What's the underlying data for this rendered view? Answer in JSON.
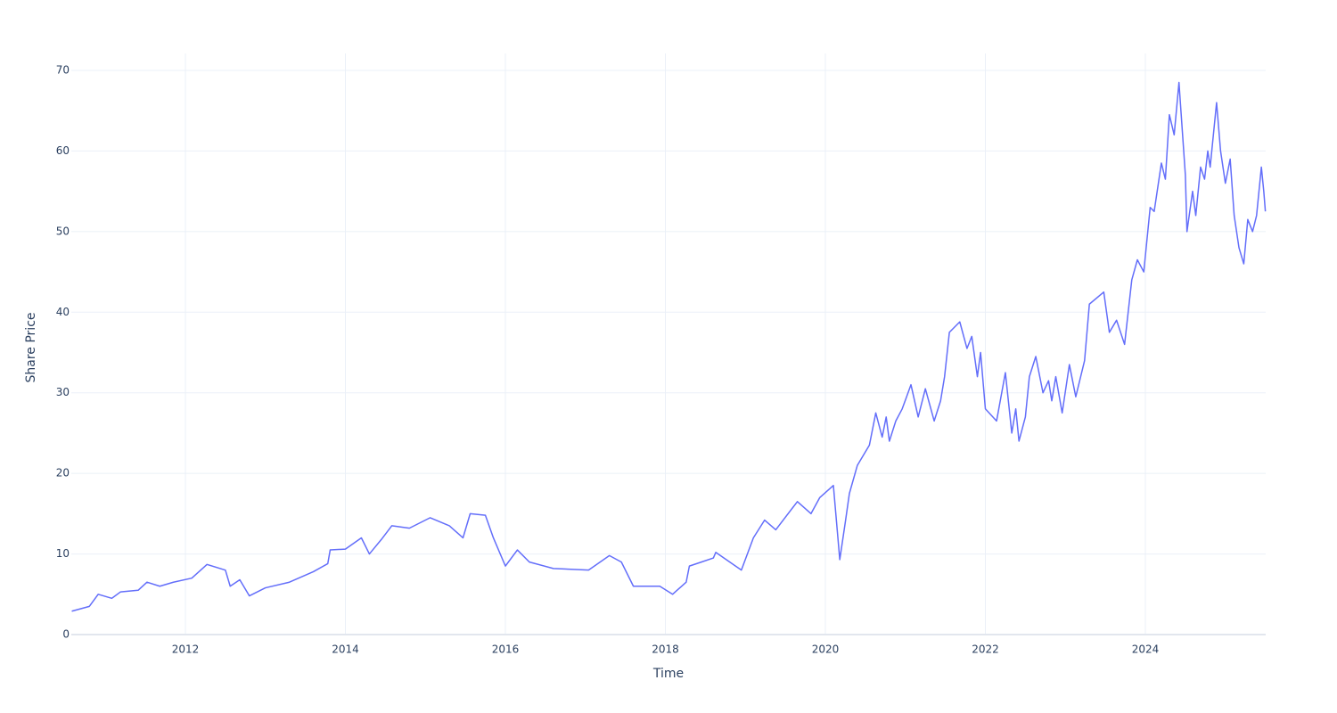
{
  "chart_data": {
    "type": "line",
    "x_label": "Time",
    "y_label": "Share Price",
    "x": [
      2010.58,
      2010.8,
      2010.91,
      2011.08,
      2011.19,
      2011.41,
      2011.52,
      2011.68,
      2011.85,
      2012.08,
      2012.27,
      2012.5,
      2012.56,
      2012.68,
      2012.8,
      2013.0,
      2013.3,
      2013.6,
      2013.78,
      2013.81,
      2014.0,
      2014.2,
      2014.3,
      2014.45,
      2014.58,
      2014.8,
      2015.06,
      2015.3,
      2015.47,
      2015.56,
      2015.75,
      2015.85,
      2016.0,
      2016.15,
      2016.3,
      2016.6,
      2017.04,
      2017.3,
      2017.45,
      2017.6,
      2017.93,
      2018.09,
      2018.26,
      2018.3,
      2018.45,
      2018.6,
      2018.63,
      2018.95,
      2019.1,
      2019.24,
      2019.38,
      2019.65,
      2019.82,
      2019.93,
      2020.1,
      2020.18,
      2020.25,
      2020.3,
      2020.4,
      2020.55,
      2020.63,
      2020.71,
      2020.76,
      2020.8,
      2020.88,
      2020.96,
      2021.07,
      2021.16,
      2021.25,
      2021.36,
      2021.44,
      2021.49,
      2021.55,
      2021.68,
      2021.77,
      2021.83,
      2021.9,
      2021.94,
      2022.0,
      2022.14,
      2022.25,
      2022.33,
      2022.38,
      2022.42,
      2022.5,
      2022.55,
      2022.63,
      2022.72,
      2022.79,
      2022.83,
      2022.88,
      2022.96,
      2023.05,
      2023.13,
      2023.24,
      2023.3,
      2023.48,
      2023.55,
      2023.64,
      2023.74,
      2023.83,
      2023.9,
      2023.98,
      2024.06,
      2024.11,
      2024.2,
      2024.25,
      2024.3,
      2024.36,
      2024.42,
      2024.5,
      2024.52,
      2024.59,
      2024.63,
      2024.69,
      2024.74,
      2024.78,
      2024.81,
      2024.89,
      2024.94,
      2025.0,
      2025.06,
      2025.11,
      2025.17,
      2025.23,
      2025.28,
      2025.34,
      2025.39,
      2025.45,
      2025.48,
      2025.5
    ],
    "series": [
      {
        "name": "Share Price",
        "color": "#636efa",
        "values": [
          2.9,
          3.5,
          5.0,
          4.5,
          5.3,
          5.5,
          6.5,
          6.0,
          6.5,
          7.0,
          8.7,
          8.0,
          6.0,
          6.8,
          4.8,
          5.8,
          6.5,
          7.8,
          8.8,
          10.5,
          10.6,
          12.0,
          10.0,
          11.8,
          13.5,
          13.2,
          14.5,
          13.5,
          12.0,
          15.0,
          14.8,
          12.0,
          8.5,
          10.5,
          9.0,
          8.2,
          8.0,
          9.8,
          9.0,
          6.0,
          6.0,
          5.0,
          6.5,
          8.5,
          9.0,
          9.5,
          10.2,
          8.0,
          12.0,
          14.2,
          13.0,
          16.5,
          15.0,
          17.0,
          18.5,
          9.3,
          14.0,
          17.5,
          21.0,
          23.5,
          27.5,
          24.5,
          27.0,
          24.0,
          26.5,
          28.0,
          31.0,
          27.0,
          30.5,
          26.5,
          29.0,
          32.0,
          37.5,
          38.8,
          35.5,
          37.0,
          32.0,
          35.0,
          28.0,
          26.5,
          32.5,
          25.0,
          28.0,
          24.0,
          27.0,
          32.0,
          34.5,
          30.0,
          31.5,
          29.0,
          32.0,
          27.5,
          33.5,
          29.5,
          34.0,
          41.0,
          42.5,
          37.5,
          39.0,
          36.0,
          44.0,
          46.5,
          45.0,
          53.0,
          52.5,
          58.5,
          56.5,
          64.5,
          62.0,
          68.5,
          57.0,
          50.0,
          55.0,
          52.0,
          58.0,
          56.5,
          60.0,
          58.0,
          66.0,
          60.0,
          56.0,
          59.0,
          52.0,
          48.0,
          46.0,
          51.5,
          50.0,
          52.0,
          58.0,
          55.0,
          52.5
        ]
      }
    ],
    "xlim": [
      2010.574,
      2025.504
    ],
    "xticks": [
      2012,
      2014,
      2016,
      2018,
      2020,
      2022,
      2024
    ],
    "ylim": [
      0,
      72.1
    ],
    "yticks": [
      0,
      10,
      20,
      30,
      40,
      50,
      60,
      70
    ],
    "grid": true
  }
}
